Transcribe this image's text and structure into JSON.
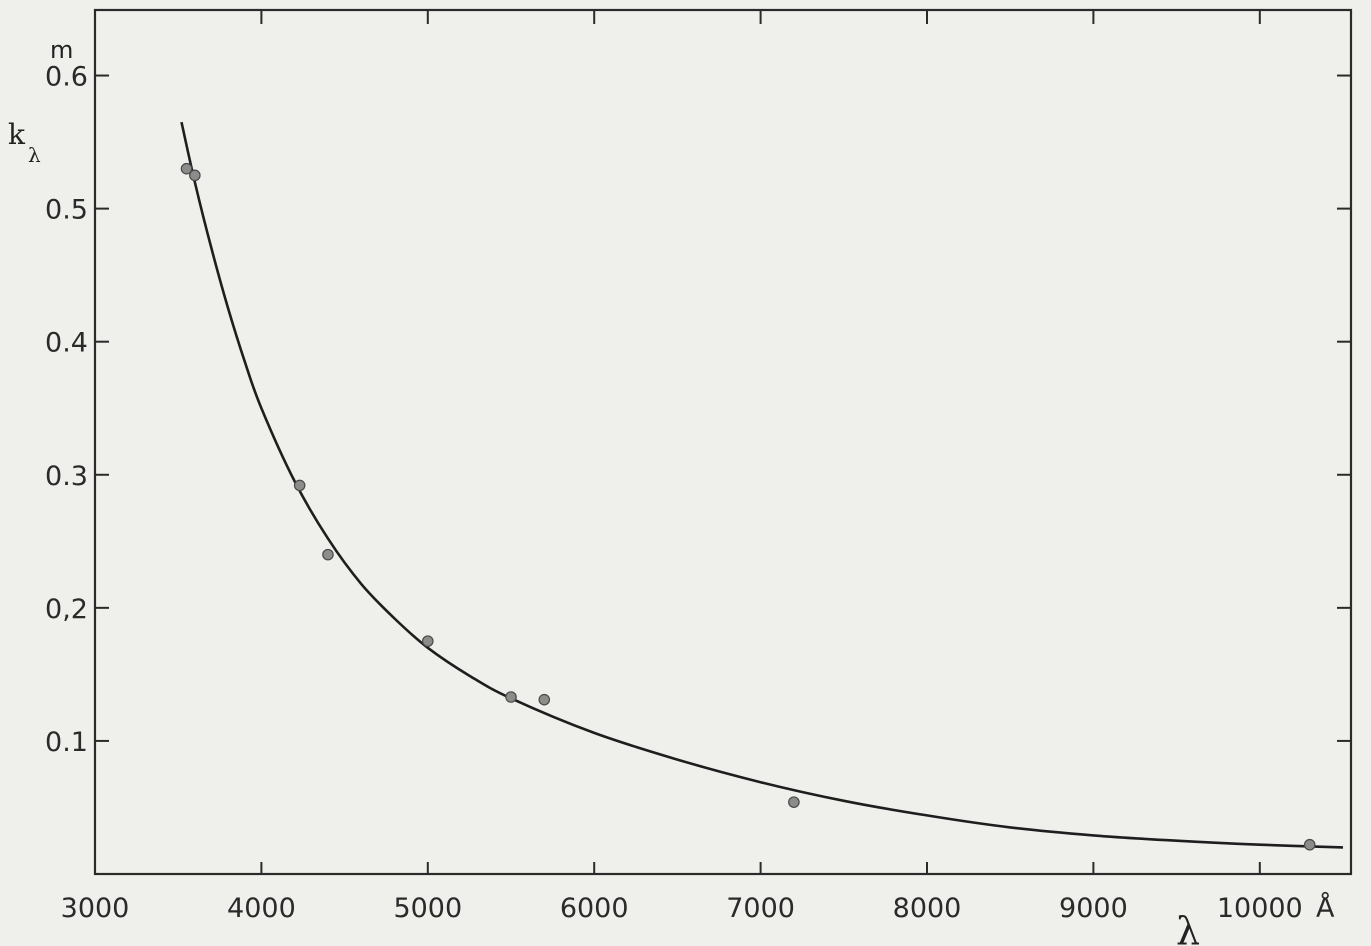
{
  "chart_data": {
    "type": "scatter",
    "title": "",
    "xlabel": "λ",
    "x_unit": "Å",
    "ylabel": "k",
    "ylabel_subscript": "λ",
    "y_unit": "m",
    "xlim": [
      3000,
      10500
    ],
    "ylim": [
      0.0,
      0.65
    ],
    "x_ticks": [
      3000,
      4000,
      5000,
      6000,
      7000,
      8000,
      9000,
      10000
    ],
    "x_tick_labels": [
      "3000",
      "4000",
      "5000",
      "6000",
      "7000",
      "8000",
      "9000",
      "10000"
    ],
    "y_ticks": [
      0.1,
      0.2,
      0.3,
      0.4,
      0.5,
      0.6
    ],
    "y_tick_labels": [
      "0.1",
      "0,2",
      "0.3",
      "0.4",
      "0.5",
      "0.6"
    ],
    "grid": false,
    "series": [
      {
        "kind": "points",
        "x": [
          3550,
          3600,
          4230,
          4400,
          5000,
          5500,
          5700,
          7200,
          10300
        ],
        "y": [
          0.53,
          0.525,
          0.292,
          0.24,
          0.175,
          0.133,
          0.131,
          0.054,
          0.022
        ]
      },
      {
        "kind": "curve",
        "x": [
          3520,
          3600,
          3700,
          3800,
          3900,
          4000,
          4200,
          4400,
          4600,
          4800,
          5000,
          5250,
          5500,
          6000,
          6500,
          7000,
          7500,
          8000,
          8500,
          9000,
          9500,
          10000,
          10500
        ],
        "y": [
          0.565,
          0.52,
          0.47,
          0.425,
          0.385,
          0.35,
          0.295,
          0.252,
          0.218,
          0.192,
          0.17,
          0.149,
          0.132,
          0.106,
          0.086,
          0.069,
          0.055,
          0.044,
          0.035,
          0.029,
          0.025,
          0.022,
          0.02
        ]
      }
    ]
  }
}
